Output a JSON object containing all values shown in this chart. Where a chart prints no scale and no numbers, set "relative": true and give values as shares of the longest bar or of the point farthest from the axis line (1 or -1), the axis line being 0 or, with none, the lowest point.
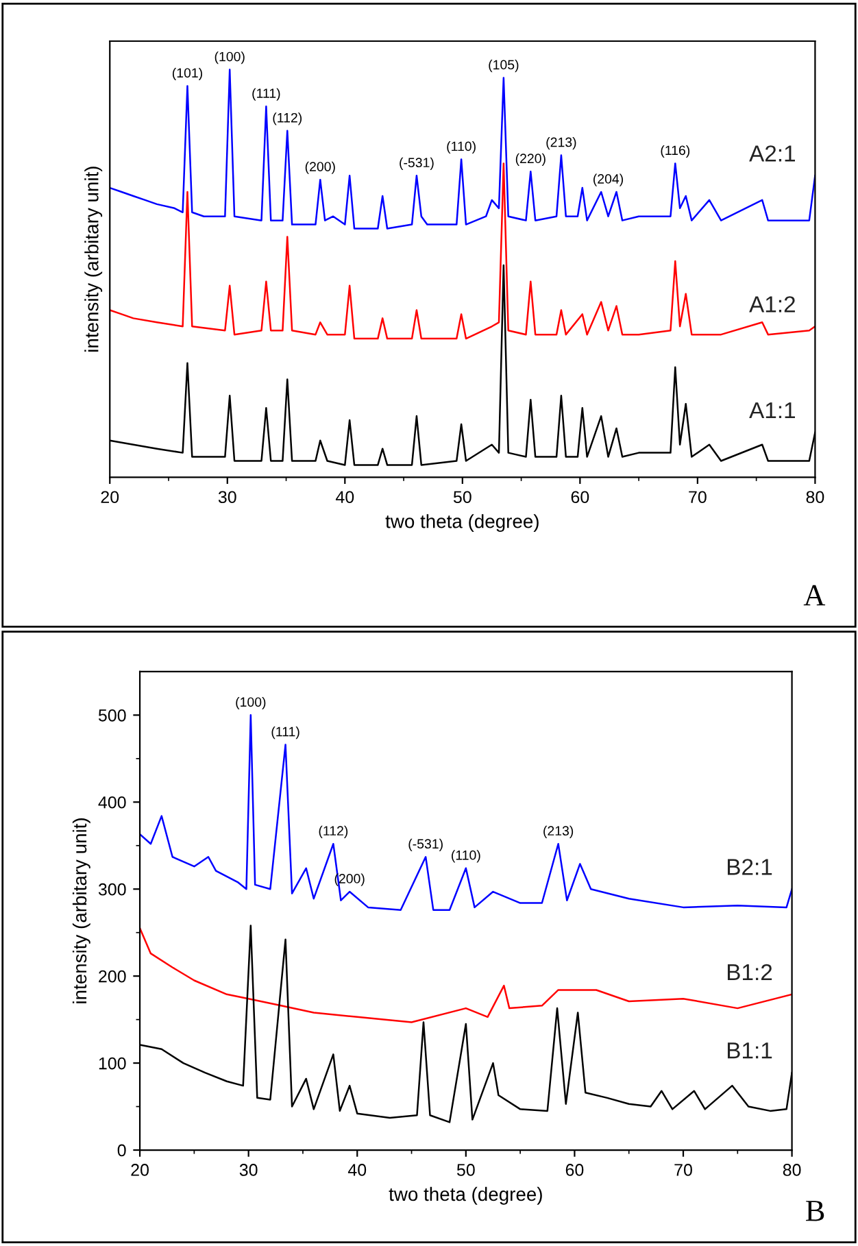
{
  "chart_data": [
    {
      "type": "line",
      "relative": true,
      "xlabel": "two theta (degree)",
      "ylabel": "intensity (arbitary unit)",
      "xlim": [
        20,
        80
      ],
      "xticks": [
        20,
        {
          "value": 25,
          "label": null
        },
        30,
        {
          "value": 35,
          "label": null
        },
        40,
        {
          "value": 45,
          "label": null
        },
        50,
        {
          "value": 55,
          "label": null
        },
        60,
        {
          "value": 65,
          "label": null
        },
        70,
        {
          "value": 75,
          "label": null
        },
        80
      ],
      "grid": false,
      "legend": false,
      "tick_labels": "x",
      "series": [
        {
          "name": "A2:1",
          "color": "#0000ff",
          "x": [
            20,
            21,
            22,
            23,
            24,
            25.5,
            26.2,
            26.6,
            27,
            28,
            29.8,
            30.2,
            30.6,
            32.9,
            33.3,
            33.7,
            34.7,
            35.1,
            35.5,
            37.5,
            37.9,
            38.3,
            39,
            40,
            40.4,
            40.8,
            42.8,
            43.2,
            43.6,
            45.7,
            46.1,
            46.5,
            47,
            49.5,
            49.9,
            50.3,
            52,
            52.5,
            53.1,
            53.5,
            53.9,
            55.4,
            55.8,
            56.2,
            58,
            58.4,
            58.8,
            59.8,
            60.2,
            60.6,
            61.8,
            62.4,
            63.1,
            63.6,
            65,
            67.7,
            68.1,
            68.5,
            69,
            69.5,
            71,
            72,
            75.5,
            76,
            79.5,
            80
          ],
          "values": [
            0.71,
            0.7,
            0.69,
            0.68,
            0.67,
            0.66,
            0.65,
            0.96,
            0.65,
            0.64,
            0.64,
            1.0,
            0.64,
            0.63,
            0.91,
            0.63,
            0.63,
            0.85,
            0.62,
            0.62,
            0.73,
            0.63,
            0.64,
            0.62,
            0.74,
            0.61,
            0.61,
            0.69,
            0.61,
            0.62,
            0.74,
            0.64,
            0.62,
            0.62,
            0.78,
            0.62,
            0.64,
            0.68,
            0.66,
            0.98,
            0.64,
            0.63,
            0.75,
            0.63,
            0.64,
            0.79,
            0.64,
            0.64,
            0.71,
            0.63,
            0.7,
            0.64,
            0.7,
            0.63,
            0.64,
            0.64,
            0.77,
            0.66,
            0.69,
            0.63,
            0.68,
            0.63,
            0.68,
            0.63,
            0.63,
            0.74
          ]
        },
        {
          "name": "A1:2",
          "color": "#ff0000",
          "x": [
            20,
            21,
            22,
            24,
            26.2,
            26.6,
            27,
            29.8,
            30.2,
            30.6,
            32.9,
            33.3,
            33.7,
            34.7,
            35.1,
            35.5,
            37.5,
            37.9,
            38.5,
            40,
            40.4,
            40.8,
            42.8,
            43.2,
            43.6,
            45.7,
            46.1,
            46.5,
            49.5,
            49.9,
            50.3,
            52.5,
            53.1,
            53.5,
            53.9,
            55.4,
            55.8,
            56.2,
            58,
            58.4,
            58.8,
            60.2,
            60.6,
            61.8,
            62.4,
            63.1,
            63.6,
            65,
            67.7,
            68.1,
            68.5,
            69,
            69.5,
            72,
            75.5,
            76,
            79.5,
            80
          ],
          "values": [
            0.41,
            0.4,
            0.39,
            0.38,
            0.37,
            0.7,
            0.37,
            0.36,
            0.47,
            0.35,
            0.36,
            0.48,
            0.36,
            0.36,
            0.59,
            0.36,
            0.35,
            0.38,
            0.35,
            0.35,
            0.47,
            0.34,
            0.34,
            0.39,
            0.34,
            0.34,
            0.41,
            0.34,
            0.34,
            0.4,
            0.34,
            0.37,
            0.38,
            0.77,
            0.36,
            0.35,
            0.48,
            0.35,
            0.35,
            0.41,
            0.35,
            0.4,
            0.35,
            0.43,
            0.36,
            0.42,
            0.35,
            0.35,
            0.36,
            0.53,
            0.37,
            0.45,
            0.35,
            0.35,
            0.38,
            0.35,
            0.36,
            0.37
          ]
        },
        {
          "name": "A1:1",
          "color": "#000000",
          "x": [
            20,
            22,
            24,
            26.2,
            26.6,
            27,
            29.8,
            30.2,
            30.6,
            32.9,
            33.3,
            33.7,
            34.7,
            35.1,
            35.5,
            37.5,
            37.9,
            38.5,
            40,
            40.4,
            40.8,
            42.8,
            43.2,
            43.6,
            45.7,
            46.1,
            46.5,
            49.5,
            49.9,
            50.3,
            52.5,
            53.1,
            53.5,
            53.9,
            55.4,
            55.8,
            56.2,
            58,
            58.4,
            58.8,
            59.8,
            60.2,
            60.6,
            61.8,
            62.4,
            63.1,
            63.6,
            65,
            67.7,
            68.1,
            68.5,
            69,
            69.5,
            71,
            72,
            75.5,
            76,
            79.5,
            80
          ],
          "values": [
            0.09,
            0.08,
            0.07,
            0.06,
            0.28,
            0.05,
            0.05,
            0.2,
            0.04,
            0.04,
            0.17,
            0.04,
            0.04,
            0.24,
            0.04,
            0.04,
            0.09,
            0.04,
            0.03,
            0.14,
            0.03,
            0.03,
            0.07,
            0.03,
            0.03,
            0.15,
            0.03,
            0.04,
            0.13,
            0.04,
            0.08,
            0.06,
            0.52,
            0.06,
            0.05,
            0.19,
            0.05,
            0.05,
            0.2,
            0.05,
            0.05,
            0.17,
            0.05,
            0.15,
            0.05,
            0.12,
            0.05,
            0.06,
            0.06,
            0.27,
            0.08,
            0.18,
            0.05,
            0.08,
            0.04,
            0.08,
            0.04,
            0.04,
            0.11
          ]
        }
      ],
      "annotations": [
        {
          "text": "(101)",
          "x": 26.6,
          "y": 0.96
        },
        {
          "text": "(100)",
          "x": 30.2,
          "y": 1.0
        },
        {
          "text": "(111)",
          "x": 33.3,
          "y": 0.91
        },
        {
          "text": "(112)",
          "x": 35.1,
          "y": 0.85
        },
        {
          "text": "(200)",
          "x": 37.9,
          "y": 0.73
        },
        {
          "text": "(-531)",
          "x": 46.1,
          "y": 0.74
        },
        {
          "text": "(110)",
          "x": 49.9,
          "y": 0.78
        },
        {
          "text": "(105)",
          "x": 53.5,
          "y": 0.98
        },
        {
          "text": "(220)",
          "x": 55.8,
          "y": 0.75
        },
        {
          "text": "(213)",
          "x": 58.4,
          "y": 0.79
        },
        {
          "text": "(204)",
          "x": 62.4,
          "y": 0.7
        },
        {
          "text": "(116)",
          "x": 68.1,
          "y": 0.77
        },
        "A"
      ]
    },
    {
      "type": "line",
      "xlabel": "two theta (degree)",
      "ylabel": "intensity (arbitary unit)",
      "xlim": [
        20,
        80
      ],
      "ylim": [
        0,
        550
      ],
      "xticks": [
        20,
        {
          "value": 25,
          "label": null
        },
        30,
        {
          "value": 35,
          "label": null
        },
        40,
        {
          "value": 45,
          "label": null
        },
        50,
        {
          "value": 55,
          "label": null
        },
        60,
        {
          "value": 65,
          "label": null
        },
        70,
        {
          "value": 75,
          "label": null
        },
        80
      ],
      "yticks": [
        0,
        {
          "value": 50,
          "label": null
        },
        100,
        {
          "value": 150,
          "label": null
        },
        200,
        {
          "value": 250,
          "label": null
        },
        300,
        {
          "value": 350,
          "label": null
        },
        400,
        {
          "value": 450,
          "label": null
        },
        500
      ],
      "grid": false,
      "legend": false,
      "series": [
        {
          "name": "B2:1",
          "color": "#0000ff",
          "x": [
            20,
            21,
            22,
            23,
            25,
            26.3,
            27,
            29,
            29.8,
            30.2,
            30.6,
            32,
            33.4,
            34,
            35.3,
            36,
            37.8,
            38.5,
            39.3,
            41,
            44,
            46.3,
            47,
            48.5,
            50,
            50.8,
            52.5,
            55,
            57,
            58.5,
            59.3,
            60.5,
            61.5,
            65,
            70,
            75,
            79.5,
            80
          ],
          "values": [
            363,
            352,
            384,
            337,
            326,
            337,
            321,
            308,
            300,
            500,
            305,
            300,
            466,
            295,
            324,
            289,
            352,
            287,
            297,
            279,
            276,
            337,
            276,
            276,
            324,
            279,
            297,
            284,
            284,
            352,
            287,
            329,
            300,
            289,
            279,
            281,
            279,
            300
          ]
        },
        {
          "name": "B1:2",
          "color": "#ff0000",
          "x": [
            20,
            21,
            23,
            25,
            28,
            30,
            33,
            36,
            40,
            45,
            50,
            52,
            53.5,
            54,
            57,
            58.5,
            60.3,
            62,
            65,
            70,
            75,
            80
          ],
          "values": [
            255,
            226,
            210,
            195,
            179,
            174,
            166,
            158,
            153,
            147,
            163,
            153,
            189,
            163,
            166,
            184,
            184,
            184,
            171,
            174,
            163,
            179
          ]
        },
        {
          "name": "B1:1",
          "color": "#000000",
          "x": [
            20,
            22,
            24,
            26,
            28,
            29.5,
            30.2,
            30.8,
            32,
            33.4,
            34,
            35.3,
            36,
            37.8,
            38.4,
            39.3,
            40,
            43,
            45.5,
            46.1,
            46.7,
            48.5,
            50,
            50.6,
            52.5,
            53,
            55,
            57.5,
            58.4,
            59.2,
            60.3,
            61,
            63,
            65,
            67,
            68,
            69,
            71,
            72,
            74.5,
            76,
            78,
            79.5,
            80
          ],
          "values": [
            121,
            116,
            100,
            89,
            79,
            74,
            258,
            60,
            58,
            242,
            50,
            82,
            47,
            110,
            45,
            74,
            42,
            37,
            40,
            147,
            40,
            32,
            145,
            35,
            100,
            63,
            47,
            45,
            163,
            53,
            158,
            66,
            60,
            53,
            50,
            68,
            47,
            68,
            47,
            74,
            50,
            45,
            47,
            89
          ]
        }
      ],
      "annotations": [
        {
          "text": "(100)",
          "x": 30.2,
          "y": 500
        },
        {
          "text": "(111)",
          "x": 33.4,
          "y": 466
        },
        {
          "text": "(112)",
          "x": 37.8,
          "y": 352
        },
        {
          "text": "(200)",
          "x": 39.3,
          "y": 297
        },
        {
          "text": "(-531)",
          "x": 46.3,
          "y": 337
        },
        {
          "text": "(110)",
          "x": 50,
          "y": 324
        },
        {
          "text": "(213)",
          "x": 58.5,
          "y": 352
        },
        "B"
      ]
    }
  ]
}
